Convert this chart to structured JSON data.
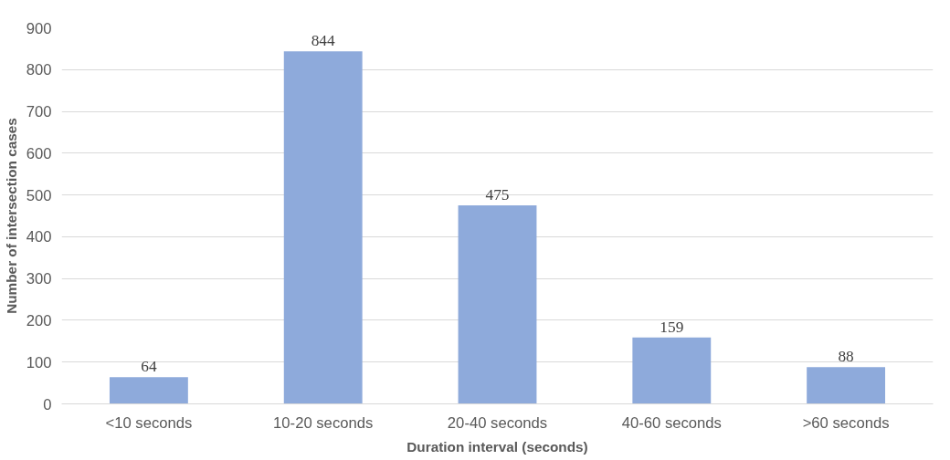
{
  "chart_data": {
    "type": "bar",
    "xlabel": "Duration interval (seconds)",
    "ylabel": "Number of intersection cases",
    "categories": [
      "<10 seconds",
      "10-20 seconds",
      "20-40 seconds",
      "40-60 seconds",
      ">60 seconds"
    ],
    "values": [
      64,
      844,
      475,
      159,
      88
    ],
    "color": "#8eaadb",
    "ylim": [
      0,
      900
    ],
    "yticks": [
      0,
      100,
      200,
      300,
      400,
      500,
      600,
      700,
      800,
      900
    ],
    "grid": "y",
    "data_labels": true
  }
}
